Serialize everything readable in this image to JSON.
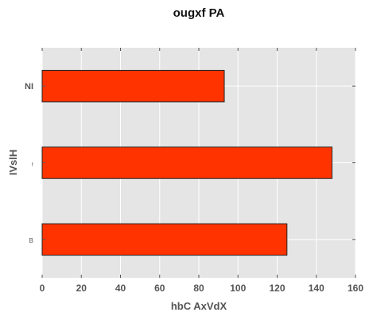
{
  "chart_data": {
    "type": "bar",
    "orientation": "horizontal",
    "title": "ougxf PA",
    "xlabel": "hbC AxVdX",
    "ylabel": "IVslH",
    "categories": [
      "NI",
      "r",
      "B"
    ],
    "values": [
      93,
      148,
      125
    ],
    "xlim": [
      0,
      160
    ],
    "xticks": [
      0,
      20,
      40,
      60,
      80,
      100,
      120,
      140,
      160
    ],
    "grid": true,
    "legend": "none",
    "colors": {
      "bar": "#ff3300",
      "plot_bg": "#e5e5e5",
      "grid": "#ffffff"
    }
  }
}
